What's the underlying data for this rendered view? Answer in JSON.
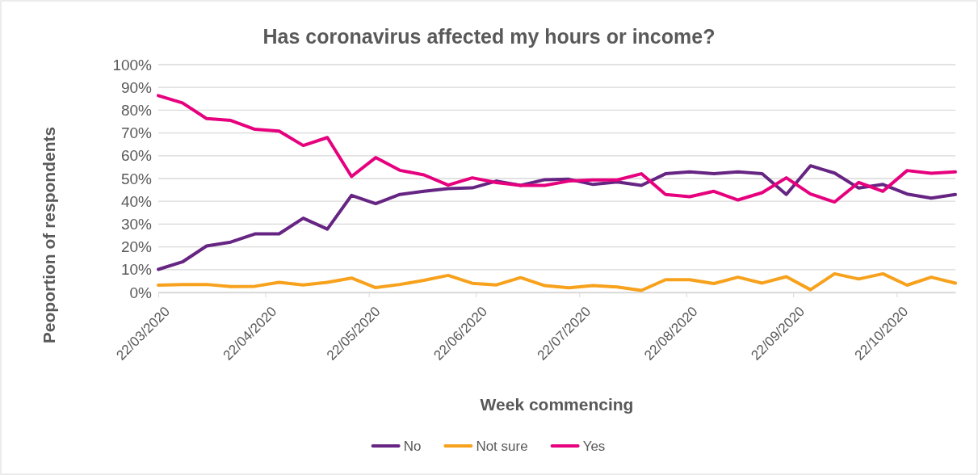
{
  "chart_data": {
    "type": "line",
    "title": "Has coronavirus affected my hours or income?",
    "xlabel": "Week commencing",
    "ylabel": "Peoportion of respondents",
    "x": [
      "2020-03-22",
      "2020-03-29",
      "2020-04-05",
      "2020-04-12",
      "2020-04-19",
      "2020-04-26",
      "2020-05-03",
      "2020-05-10",
      "2020-05-17",
      "2020-05-24",
      "2020-05-31",
      "2020-06-07",
      "2020-06-14",
      "2020-06-21",
      "2020-06-28",
      "2020-07-05",
      "2020-07-12",
      "2020-07-19",
      "2020-07-26",
      "2020-08-02",
      "2020-08-09",
      "2020-08-16",
      "2020-08-23",
      "2020-08-30",
      "2020-09-06",
      "2020-09-13",
      "2020-09-20",
      "2020-09-27",
      "2020-10-04",
      "2020-10-11",
      "2020-10-18",
      "2020-10-25",
      "2020-11-01",
      "2020-11-08"
    ],
    "series": [
      {
        "name": "No",
        "color": "#662483",
        "values": [
          10.1,
          13.4,
          20.4,
          22.1,
          25.7,
          25.7,
          32.6,
          27.8,
          42.6,
          39.0,
          43.0,
          44.4,
          45.6,
          45.9,
          48.9,
          47.0,
          49.5,
          49.7,
          47.4,
          48.5,
          47.0,
          52.1,
          52.9,
          52.1,
          52.9,
          52.1,
          43.0,
          55.6,
          52.4,
          45.8,
          47.4,
          43.2,
          41.4,
          43.0
        ]
      },
      {
        "name": "Not sure",
        "color": "#f7a11c",
        "values": [
          3.2,
          3.5,
          3.5,
          2.6,
          2.7,
          4.4,
          3.3,
          4.4,
          6.3,
          2.1,
          3.5,
          5.3,
          7.5,
          4.0,
          3.3,
          6.5,
          3.0,
          2.0,
          3.0,
          2.4,
          0.9,
          5.6,
          5.6,
          3.9,
          6.7,
          4.1,
          6.9,
          1.2,
          8.2,
          5.9,
          8.2,
          3.2,
          6.7,
          4.1
        ]
      },
      {
        "name": "Yes",
        "color": "#e6007e",
        "values": [
          86.4,
          83.2,
          76.3,
          75.5,
          71.6,
          70.8,
          64.5,
          68.0,
          50.9,
          59.2,
          53.6,
          51.6,
          47.1,
          50.3,
          48.2,
          47.0,
          47.0,
          48.9,
          49.4,
          49.4,
          52.1,
          43.0,
          42.0,
          44.4,
          40.6,
          43.8,
          50.3,
          43.2,
          39.7,
          48.3,
          44.4,
          53.5,
          52.3,
          52.9
        ]
      }
    ],
    "xlim": [
      "2020-03-22",
      "2020-11-08"
    ],
    "xticks": [
      {
        "value": "2020-03-22",
        "label": "22/03/2020"
      },
      {
        "value": "2020-04-22",
        "label": "22/04/2020"
      },
      {
        "value": "2020-05-22",
        "label": "22/05/2020"
      },
      {
        "value": "2020-06-22",
        "label": "22/06/2020"
      },
      {
        "value": "2020-07-22",
        "label": "22/07/2020"
      },
      {
        "value": "2020-08-22",
        "label": "22/08/2020"
      },
      {
        "value": "2020-09-22",
        "label": "22/09/2020"
      },
      {
        "value": "2020-10-22",
        "label": "22/10/2020"
      }
    ],
    "ylim": [
      0,
      100
    ],
    "yticks": [
      {
        "value": 0,
        "label": "0%"
      },
      {
        "value": 10,
        "label": "10%"
      },
      {
        "value": 20,
        "label": "20%"
      },
      {
        "value": 30,
        "label": "30%"
      },
      {
        "value": 40,
        "label": "40%"
      },
      {
        "value": 50,
        "label": "50%"
      },
      {
        "value": 60,
        "label": "60%"
      },
      {
        "value": 70,
        "label": "70%"
      },
      {
        "value": 80,
        "label": "80%"
      },
      {
        "value": 90,
        "label": "90%"
      },
      {
        "value": 100,
        "label": "100%"
      }
    ],
    "grid": "y",
    "legend": "bottom",
    "marker": "none",
    "line_style": "solid"
  }
}
